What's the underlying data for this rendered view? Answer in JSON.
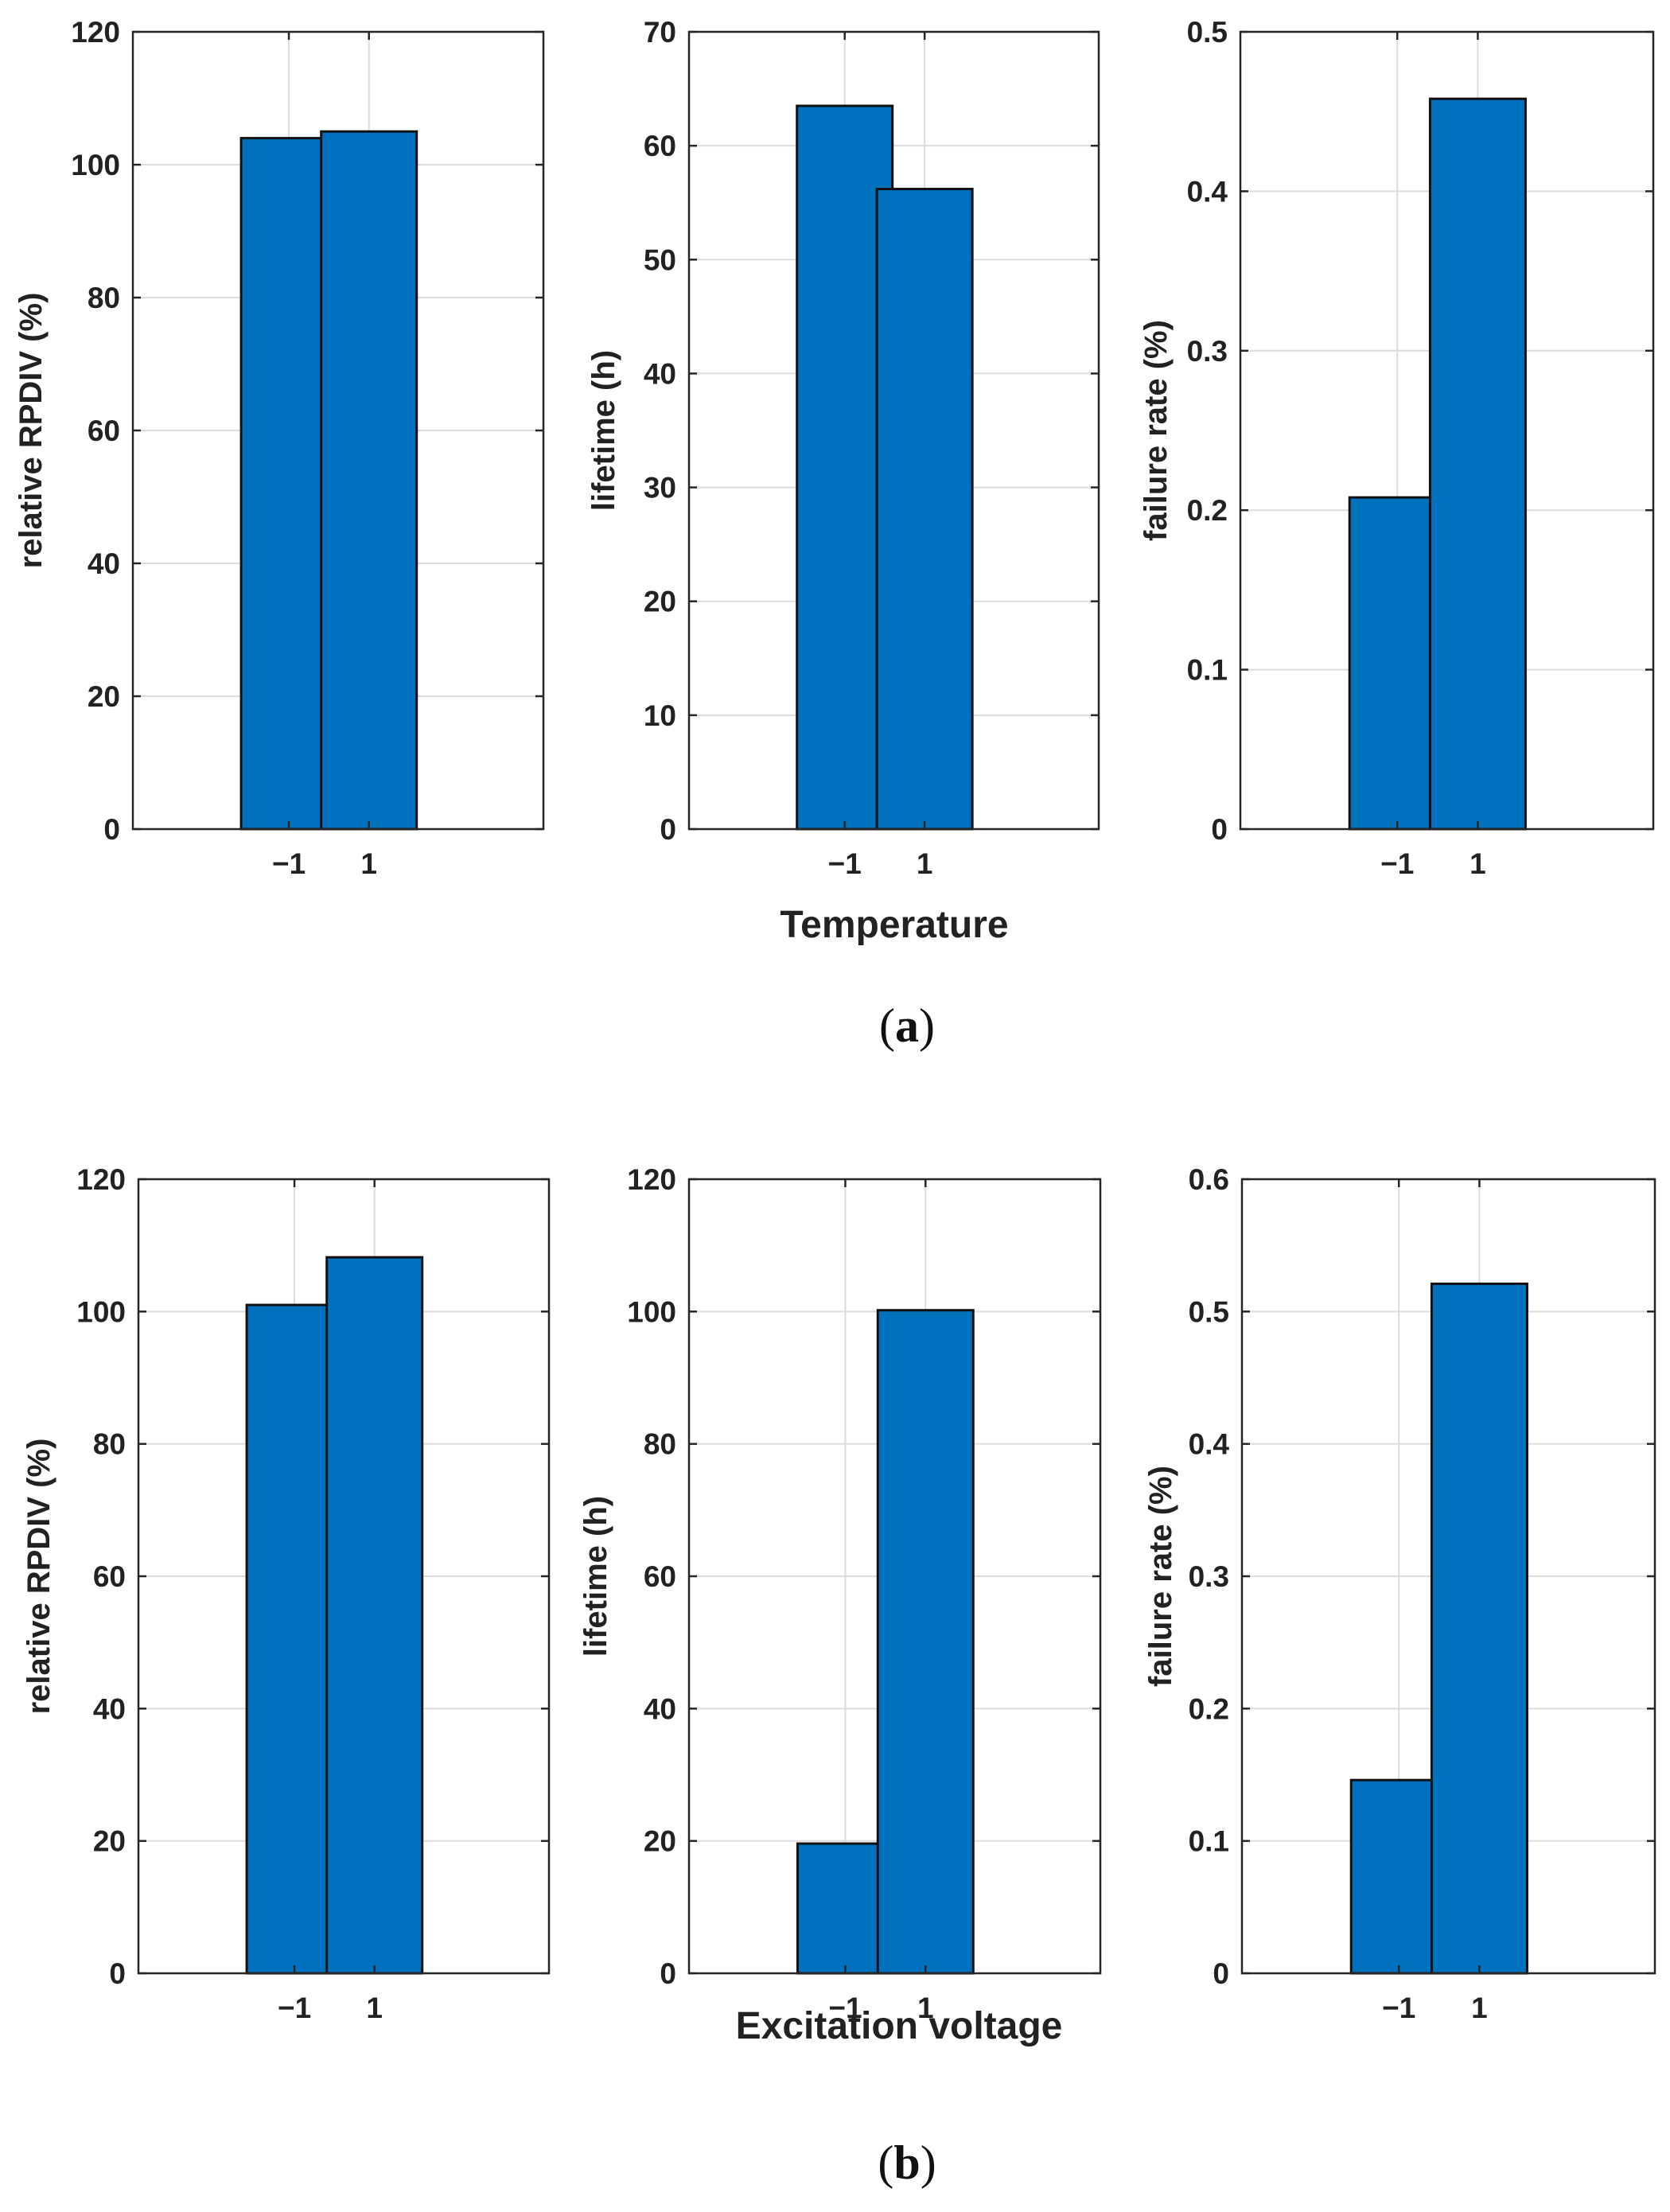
{
  "style": {
    "bar_color": "#0072BD",
    "grid_color": "#dcdcdc",
    "axis_color": "#262626"
  },
  "captions": {
    "a_letter": "a",
    "b_letter": "b"
  },
  "xlabels": {
    "a": "Temperature",
    "b": "Excitation voltage"
  },
  "chart_data": [
    {
      "panel": "a",
      "type": "bar",
      "categories": [
        "−1",
        "1"
      ],
      "values": [
        104,
        105
      ],
      "ylabel": "relative RPDIV (%)",
      "ylim": [
        0,
        120
      ],
      "yticks": [
        0,
        20,
        40,
        60,
        80,
        100,
        120
      ],
      "ytick_labels": [
        "0",
        "20",
        "40",
        "60",
        "80",
        "100",
        "120"
      ],
      "grid": true
    },
    {
      "panel": "a",
      "type": "bar",
      "categories": [
        "−1",
        "1"
      ],
      "values": [
        63.5,
        56.2
      ],
      "ylabel": "lifetime (h)",
      "ylim": [
        0,
        70
      ],
      "yticks": [
        0,
        10,
        20,
        30,
        40,
        50,
        60,
        70
      ],
      "ytick_labels": [
        "0",
        "10",
        "20",
        "30",
        "40",
        "50",
        "60",
        "70"
      ],
      "grid": true
    },
    {
      "panel": "a",
      "type": "bar",
      "categories": [
        "−1",
        "1"
      ],
      "values": [
        0.208,
        0.458
      ],
      "ylabel": "failure rate (%)",
      "ylim": [
        0,
        0.5
      ],
      "yticks": [
        0,
        0.1,
        0.2,
        0.3,
        0.4,
        0.5
      ],
      "ytick_labels": [
        "0",
        "0.1",
        "0.2",
        "0.3",
        "0.4",
        "0.5"
      ],
      "grid": true
    },
    {
      "panel": "b",
      "type": "bar",
      "categories": [
        "−1",
        "1"
      ],
      "values": [
        101,
        108.2
      ],
      "ylabel": "relative RPDIV (%)",
      "ylim": [
        0,
        120
      ],
      "yticks": [
        0,
        20,
        40,
        60,
        80,
        100,
        120
      ],
      "ytick_labels": [
        "0",
        "20",
        "40",
        "60",
        "80",
        "100",
        "120"
      ],
      "grid": true
    },
    {
      "panel": "b",
      "type": "bar",
      "categories": [
        "−1",
        "1"
      ],
      "values": [
        19.6,
        100.2
      ],
      "ylabel": "lifetime (h)",
      "ylim": [
        0,
        120
      ],
      "yticks": [
        0,
        20,
        40,
        60,
        80,
        100,
        120
      ],
      "ytick_labels": [
        "0",
        "20",
        "40",
        "60",
        "80",
        "100",
        "120"
      ],
      "grid": true
    },
    {
      "panel": "b",
      "type": "bar",
      "categories": [
        "−1",
        "1"
      ],
      "values": [
        0.146,
        0.521
      ],
      "ylabel": "failure rate (%)",
      "ylim": [
        0,
        0.6
      ],
      "yticks": [
        0,
        0.1,
        0.2,
        0.3,
        0.4,
        0.5,
        0.6
      ],
      "ytick_labels": [
        "0",
        "0.1",
        "0.2",
        "0.3",
        "0.4",
        "0.5",
        "0.6"
      ],
      "grid": true
    }
  ]
}
